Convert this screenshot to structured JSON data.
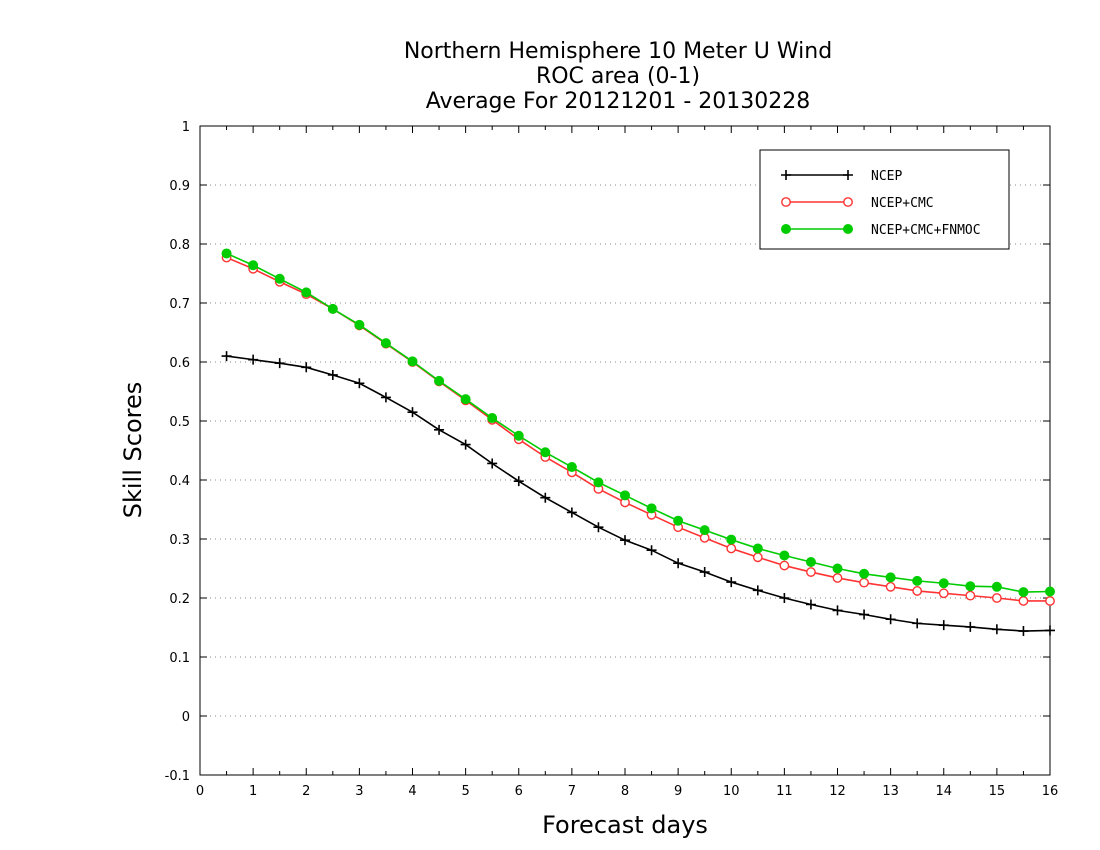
{
  "chart_data": {
    "type": "line",
    "title": [
      "Northern Hemisphere 10 Meter U Wind",
      "ROC area (0-1)",
      "Average For 20121201 - 20130228"
    ],
    "xlabel": "Forecast days",
    "ylabel": "Skill Scores",
    "xlim": [
      0,
      16
    ],
    "ylim": [
      -0.1,
      1
    ],
    "x_ticks": [
      "0",
      "1",
      "2",
      "3",
      "4",
      "5",
      "6",
      "7",
      "8",
      "9",
      "10",
      "11",
      "12",
      "13",
      "14",
      "15",
      "16"
    ],
    "y_ticks": [
      "-0.1",
      "0",
      "0.1",
      "0.2",
      "0.3",
      "0.4",
      "0.5",
      "0.6",
      "0.7",
      "0.8",
      "0.9",
      "1"
    ],
    "grid": "dotted horizontal",
    "legend_position": "top-right",
    "x": [
      0.5,
      1,
      1.5,
      2,
      2.5,
      3,
      3.5,
      4,
      4.5,
      5,
      5.5,
      6,
      6.5,
      7,
      7.5,
      8,
      8.5,
      9,
      9.5,
      10,
      10.5,
      11,
      11.5,
      12,
      12.5,
      13,
      13.5,
      14,
      14.5,
      15,
      15.5,
      16
    ],
    "series": [
      {
        "name": "NCEP",
        "color": "#000000",
        "marker": "plus",
        "values": [
          0.61,
          0.604,
          0.598,
          0.591,
          0.578,
          0.564,
          0.54,
          0.515,
          0.485,
          0.46,
          0.428,
          0.398,
          0.37,
          0.345,
          0.32,
          0.298,
          0.281,
          0.259,
          0.244,
          0.227,
          0.213,
          0.2,
          0.189,
          0.179,
          0.172,
          0.164,
          0.157,
          0.154,
          0.151,
          0.147,
          0.144,
          0.145
        ]
      },
      {
        "name": "NCEP+CMC",
        "color": "#ff3333",
        "marker": "open-circle",
        "values": [
          0.777,
          0.758,
          0.736,
          0.715,
          0.69,
          0.662,
          0.631,
          0.6,
          0.567,
          0.535,
          0.502,
          0.469,
          0.439,
          0.413,
          0.385,
          0.362,
          0.341,
          0.32,
          0.302,
          0.284,
          0.269,
          0.255,
          0.244,
          0.234,
          0.226,
          0.219,
          0.212,
          0.208,
          0.204,
          0.2,
          0.195,
          0.195
        ]
      },
      {
        "name": "NCEP+CMC+FNMOC",
        "color": "#00cc00",
        "marker": "filled-circle",
        "values": [
          0.784,
          0.764,
          0.741,
          0.718,
          0.69,
          0.663,
          0.632,
          0.601,
          0.568,
          0.537,
          0.505,
          0.475,
          0.447,
          0.422,
          0.396,
          0.374,
          0.352,
          0.331,
          0.315,
          0.299,
          0.284,
          0.272,
          0.261,
          0.25,
          0.241,
          0.235,
          0.229,
          0.225,
          0.22,
          0.219,
          0.21,
          0.211
        ]
      }
    ]
  }
}
